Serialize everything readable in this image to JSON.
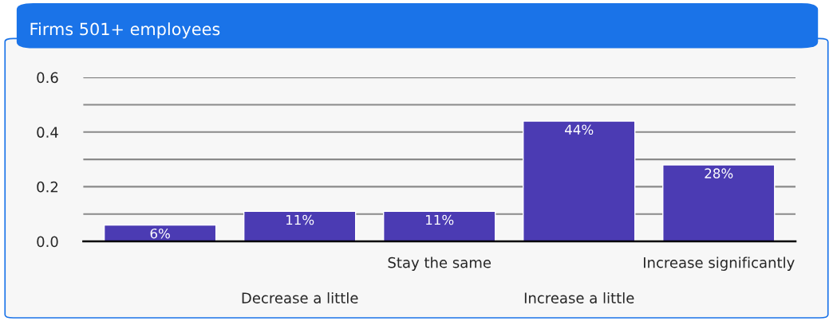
{
  "chart_data": {
    "type": "bar",
    "title": "Firms 501+ employees",
    "categories": [
      null,
      "Decrease a little",
      "Stay the same",
      "Increase a little",
      "Increase significantly"
    ],
    "values": [
      0.06,
      0.11,
      0.11,
      0.44,
      0.28
    ],
    "value_labels": [
      "6%",
      "11%",
      "11%",
      "44%",
      "28%"
    ],
    "color": "#4b3bb3",
    "ylim": [
      0,
      0.6
    ],
    "yticks": [
      {
        "value": 0,
        "label": "0.0"
      },
      {
        "value": 0.1,
        "label": null
      },
      0.2,
      {
        "value": 0.3,
        "label": null
      },
      0.4,
      {
        "value": 0.5,
        "label": null
      },
      0.6
    ],
    "grid": "y",
    "legend": false
  }
}
